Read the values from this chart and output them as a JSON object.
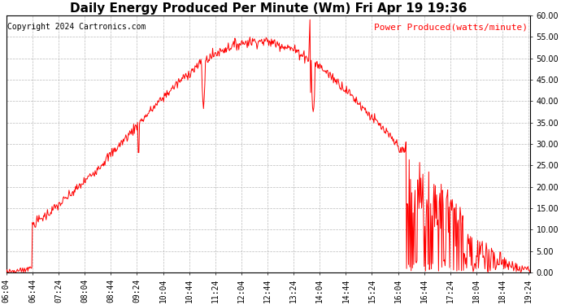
{
  "title": "Daily Energy Produced Per Minute (Wm) Fri Apr 19 19:36",
  "copyright": "Copyright 2024 Cartronics.com",
  "legend_label": "Power Produced(watts/minute)",
  "background_color": "#ffffff",
  "plot_bg_color": "#ffffff",
  "grid_color": "#bbbbbb",
  "line_color": "#ff0000",
  "title_color": "#000000",
  "copyright_color": "#000000",
  "legend_color": "#ff0000",
  "ylim": [
    0.0,
    60.0
  ],
  "yticks": [
    0.0,
    5.0,
    10.0,
    15.0,
    20.0,
    25.0,
    30.0,
    35.0,
    40.0,
    45.0,
    50.0,
    55.0,
    60.0
  ],
  "x_start_hour": 6,
  "x_start_min": 4,
  "x_end_hour": 19,
  "x_end_min": 26,
  "x_tick_interval_min": 40,
  "title_fontsize": 11,
  "copyright_fontsize": 7,
  "legend_fontsize": 8,
  "tick_fontsize": 7,
  "figsize": [
    6.9,
    3.75
  ],
  "dpi": 100
}
